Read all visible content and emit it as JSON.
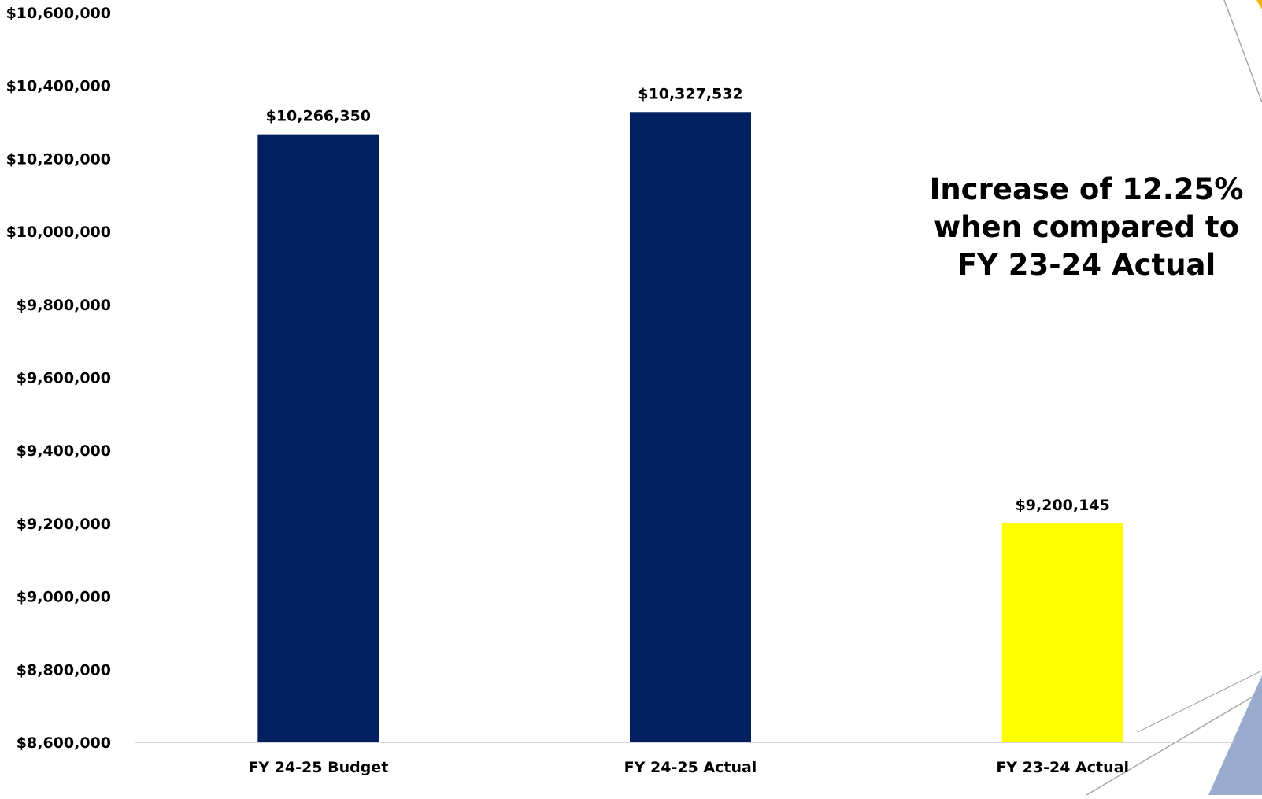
{
  "chart_data": {
    "type": "bar",
    "title": "",
    "xlabel": "",
    "ylabel": "",
    "ylim": [
      8600000,
      10600000
    ],
    "yticks": [
      8600000,
      8800000,
      9000000,
      9200000,
      9400000,
      9600000,
      9800000,
      10000000,
      10200000,
      10400000,
      10600000
    ],
    "ytick_labels": [
      "$8,600,000",
      "$8,800,000",
      "$9,000,000",
      "$9,200,000",
      "$9,400,000",
      "$9,600,000",
      "$9,800,000",
      "$10,000,000",
      "$10,200,000",
      "$10,400,000",
      "$10,600,000"
    ],
    "categories": [
      "FY 24-25 Budget",
      "FY 24-25 Actual",
      "FY 23-24 Actual"
    ],
    "values": [
      10266350,
      10327532,
      9200145
    ],
    "data_labels": [
      "$10,266,350",
      "$10,327,532",
      "$9,200,145"
    ],
    "bar_colors": [
      "#002060",
      "#002060",
      "#FFFF00"
    ],
    "grid": false,
    "annotation": [
      "Increase of 12.25%",
      "when compared to",
      "FY 23-24 Actual"
    ]
  },
  "colors": {
    "axis_line": "#C8C8C8",
    "decor_line": "#A6A6A6",
    "decor_fill": "#8FA3C9",
    "decor_accent": "#F2B705"
  }
}
